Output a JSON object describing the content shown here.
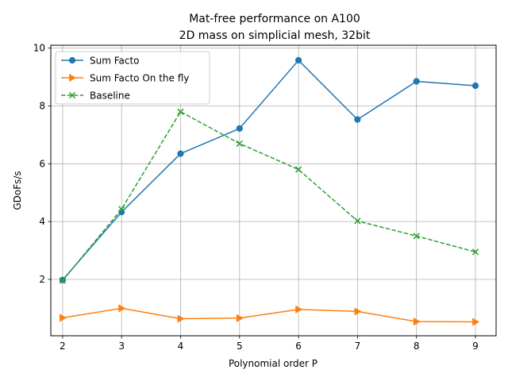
{
  "chart_data": {
    "type": "line",
    "title": "Mat-free performance on A100",
    "subtitle": "2D mass on simplicial mesh, 32bit",
    "xlabel": "Polynomial order P",
    "ylabel": "GDoFs/s",
    "x": [
      2,
      3,
      4,
      5,
      6,
      7,
      8,
      9
    ],
    "xticks": [
      "2",
      "3",
      "4",
      "5",
      "6",
      "7",
      "8",
      "9"
    ],
    "yticks": [
      "2",
      "4",
      "6",
      "8",
      "10"
    ],
    "xlim": [
      1.8,
      9.35
    ],
    "ylim": [
      0.05,
      10.1
    ],
    "grid": true,
    "legend_position": "upper-left",
    "series": [
      {
        "name": "Sum Facto",
        "values": [
          1.98,
          4.33,
          6.35,
          7.22,
          9.58,
          7.53,
          8.85,
          8.7
        ],
        "color": "#1f77b4",
        "marker": "circle",
        "dash": "solid"
      },
      {
        "name": "Sum Facto On the fly",
        "values": [
          0.67,
          1.0,
          0.64,
          0.66,
          0.96,
          0.89,
          0.54,
          0.53
        ],
        "color": "#ff7f0e",
        "marker": "triangle-right",
        "dash": "solid"
      },
      {
        "name": "Baseline",
        "values": [
          1.96,
          4.43,
          7.8,
          6.7,
          5.8,
          4.02,
          3.5,
          2.95
        ],
        "color": "#2ca02c",
        "marker": "x",
        "dash": "dashed"
      }
    ]
  }
}
